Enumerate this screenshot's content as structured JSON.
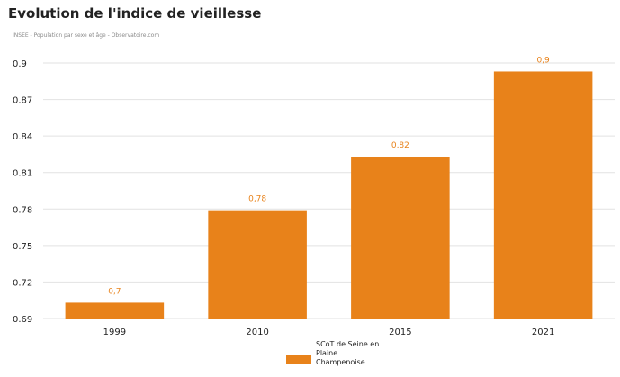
{
  "title": "Evolution de l'indice de vieillesse",
  "source": "INSEE - Population par sexe et âge - Observatoire.com",
  "colors": {
    "bar": "#e8821a",
    "grid": "#e2e2e2",
    "label": "#e8821a"
  },
  "chart_data": {
    "type": "bar",
    "categories": [
      "1999",
      "2010",
      "2015",
      "2021"
    ],
    "series": [
      {
        "name": "SCoT de Seine en Plaine Champenoise",
        "values": [
          0.703,
          0.779,
          0.823,
          0.893
        ],
        "labels": [
          "0,7",
          "0,78",
          "0,82",
          "0,9"
        ]
      }
    ],
    "ylim": [
      0.69,
      0.9
    ],
    "yticks": [
      0.69,
      0.72,
      0.75,
      0.78,
      0.81,
      0.84,
      0.87,
      0.9
    ],
    "ytick_labels": [
      "0.69",
      "0.72",
      "0.75",
      "0.78",
      "0.81",
      "0.84",
      "0.87",
      "0.9"
    ],
    "grid": true,
    "legend_position": "bottom"
  }
}
